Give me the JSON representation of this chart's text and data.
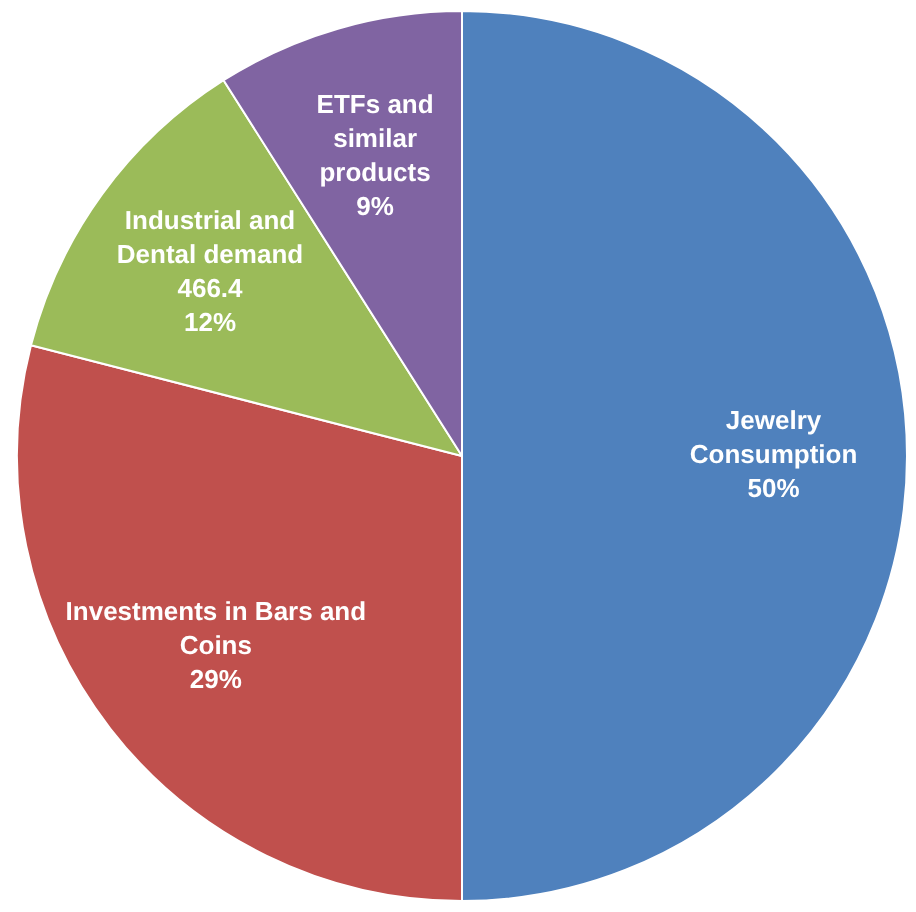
{
  "chart_data": {
    "type": "pie",
    "categories": [
      "Jewelry Consumption",
      "Investments in Bars and Coins",
      "Industrial and Dental demand",
      "ETFs and similar products"
    ],
    "values": [
      50,
      29,
      12,
      9
    ],
    "colors": [
      "#4f81bd",
      "#c0504d",
      "#9bbb59",
      "#8064a2"
    ],
    "value_labels": [
      "50%",
      "29%",
      "466.4\n12%",
      "9%"
    ],
    "legend": false
  }
}
